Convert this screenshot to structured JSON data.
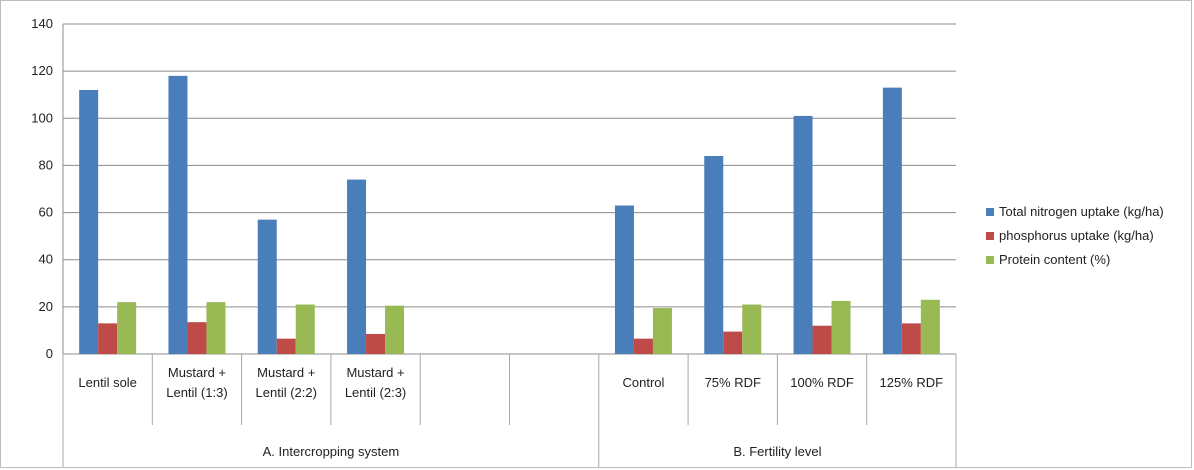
{
  "chart_data": {
    "type": "bar",
    "title": "",
    "xlabel": "",
    "ylabel": "",
    "ylim": [
      0,
      140
    ],
    "yticks": [
      0,
      20,
      40,
      60,
      80,
      100,
      120,
      140
    ],
    "grid": true,
    "legend_position": "right",
    "groups": [
      {
        "label": "A. Intercropping system",
        "span": [
          0,
          5
        ]
      },
      {
        "label": "B. Fertility level",
        "span": [
          6,
          9
        ]
      }
    ],
    "categories": [
      [
        "Lentil sole"
      ],
      [
        "Mustard +",
        "Lentil (1:3)"
      ],
      [
        "Mustard +",
        "Lentil (2:2)"
      ],
      [
        "Mustard +",
        "Lentil (2:3)"
      ],
      [
        ""
      ],
      [
        ""
      ],
      [
        "Control"
      ],
      [
        "75% RDF"
      ],
      [
        "100% RDF"
      ],
      [
        "125% RDF"
      ]
    ],
    "series": [
      {
        "name": "Total nitrogen uptake (kg/ha)",
        "color": "#4a7ebb",
        "values": [
          112,
          118,
          57,
          74,
          null,
          null,
          63,
          84,
          101,
          113
        ]
      },
      {
        "name": "phosphorus uptake (kg/ha)",
        "color": "#be4b48",
        "values": [
          13,
          13.5,
          6.5,
          8.5,
          null,
          null,
          6.5,
          9.5,
          12,
          13
        ]
      },
      {
        "name": "Protein  content  (%)",
        "color": "#98b954",
        "values": [
          22,
          22,
          21,
          20.5,
          null,
          null,
          19.5,
          21,
          22.5,
          23
        ]
      }
    ]
  }
}
